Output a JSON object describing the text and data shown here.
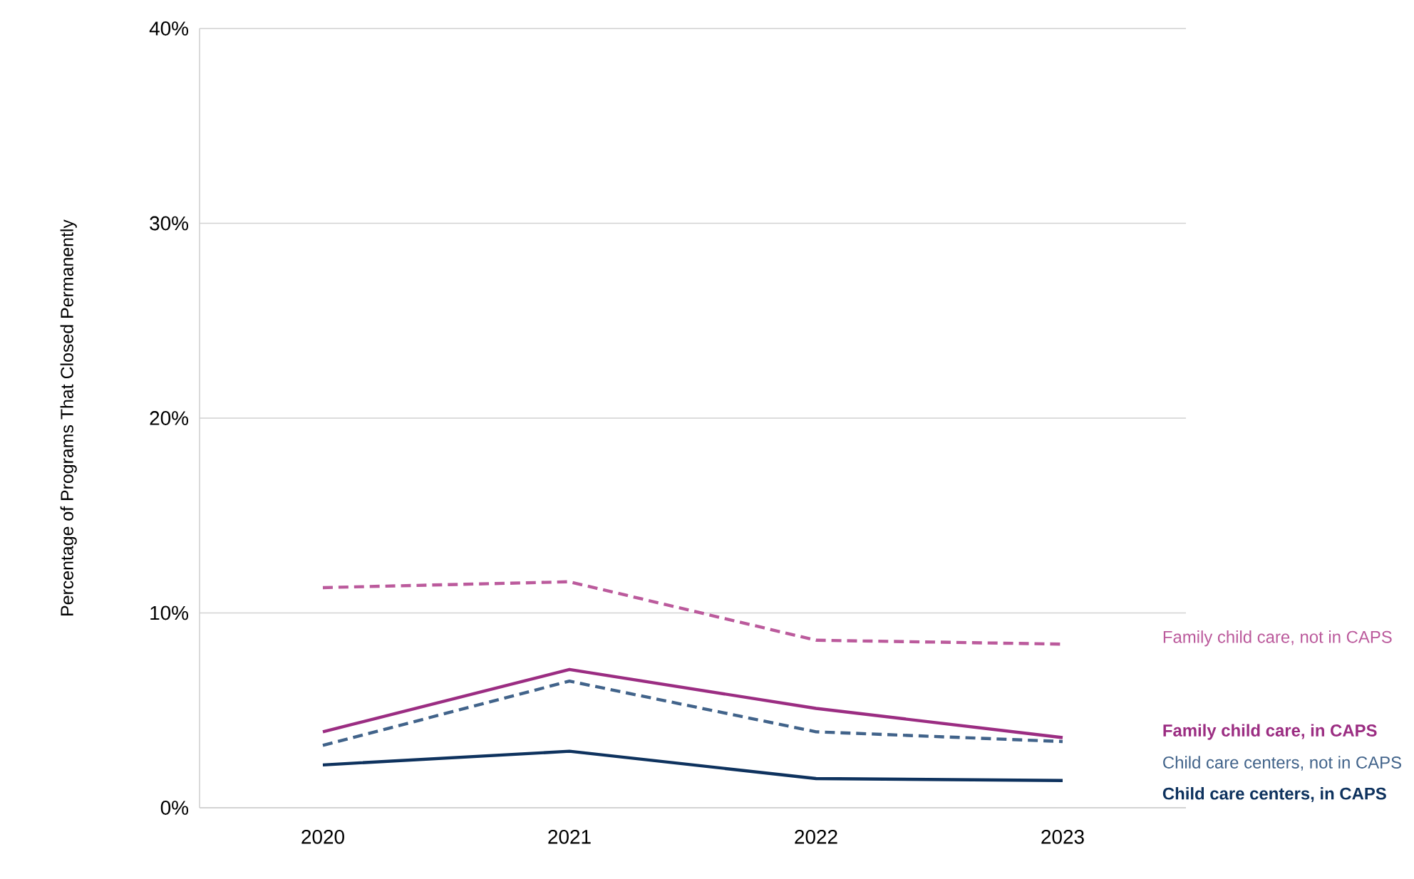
{
  "chart_data": {
    "type": "line",
    "ylabel": "Percentage of Programs That Closed Permanently",
    "categories": [
      "2020",
      "2021",
      "2022",
      "2023"
    ],
    "series": [
      {
        "name": "Family child care, not in CAPS",
        "color": "#bb5a9c",
        "line_style": "dashed",
        "values": [
          11.3,
          11.6,
          8.6,
          8.4
        ]
      },
      {
        "name": "Family child care, in CAPS",
        "color": "#9b2d82",
        "line_style": "solid",
        "values": [
          3.9,
          7.1,
          5.1,
          3.6
        ]
      },
      {
        "name": "Child care centers, not in CAPS",
        "color": "#41638a",
        "line_style": "dashed",
        "values": [
          3.2,
          6.5,
          3.9,
          3.4
        ]
      },
      {
        "name": "Child care centers, in CAPS",
        "color": "#0e325e",
        "line_style": "solid",
        "values": [
          2.2,
          2.9,
          1.5,
          1.4
        ]
      }
    ],
    "ylim": [
      0,
      40
    ],
    "yticks": [
      {
        "value": 0,
        "label": "0%"
      },
      {
        "value": 10,
        "label": "10%"
      },
      {
        "value": 20,
        "label": "20%"
      },
      {
        "value": 30,
        "label": "30%"
      },
      {
        "value": 40,
        "label": "40%"
      }
    ],
    "grid": "y",
    "marker": "none"
  }
}
